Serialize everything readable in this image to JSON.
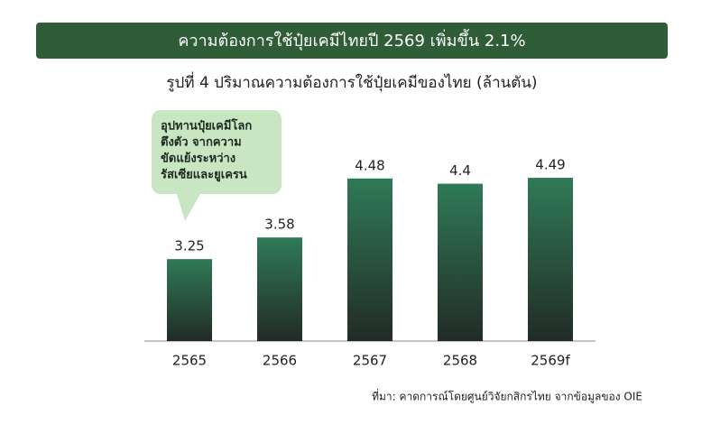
{
  "chart_data": {
    "type": "bar",
    "header": "ความต้องการใช้ปุ๋ยเคมีไทยปี 2569 เพิ่มขึ้น 2.1%",
    "title": "รูปที่ 4 ปริมาณความต้องการใช้ปุ๋ยเคมีของไทย (ล้านตัน)",
    "categories": [
      "2565",
      "2566",
      "2567",
      "2568",
      "2569f"
    ],
    "values": [
      3.25,
      3.58,
      4.48,
      4.4,
      4.49
    ],
    "color": "#2f7a57",
    "ylim": [
      2,
      5
    ],
    "annotation": [
      "อุปทานปุ๋ยเคมีโลก",
      "ตึงตัว จากความ",
      "ขัดแย้งระหว่าง",
      "รัสเซียและยูเครน"
    ],
    "source": "ที่มา: คาดการณ์โดยศูนย์วิจัยกสิกรไทย จากข้อมูลของ OIE"
  }
}
